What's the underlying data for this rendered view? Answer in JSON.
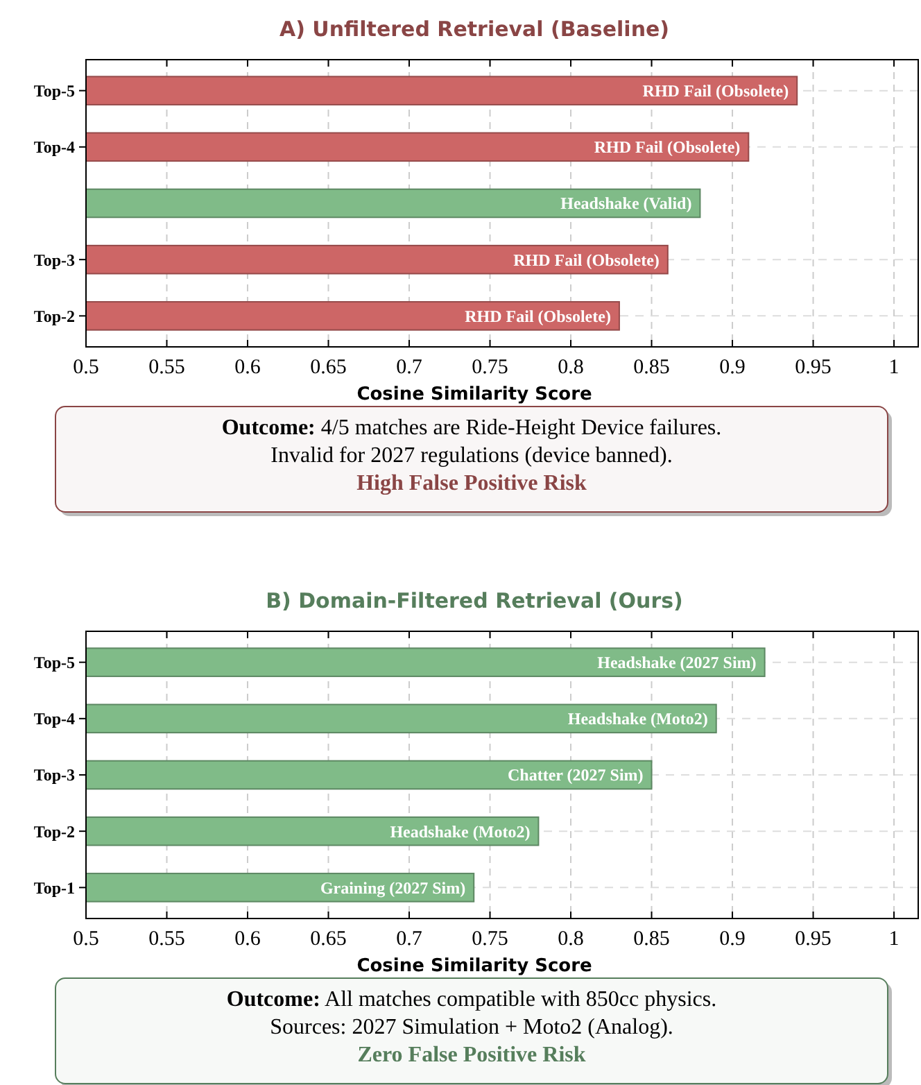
{
  "chart_data": [
    {
      "type": "bar",
      "orientation": "horizontal",
      "title": "A) Unfiltered Retrieval (Baseline)",
      "xlabel": "Cosine Similarity Score",
      "categories": [
        "Top-5",
        "Top-4",
        null,
        "Top-3",
        "Top-2"
      ],
      "values": [
        0.94,
        0.91,
        0.88,
        0.86,
        0.83
      ],
      "colors": [
        "#cd6666",
        "#cd6666",
        "#80bb88",
        "#cd6666",
        "#cd6666"
      ],
      "xlim": [
        0.5,
        1.015
      ],
      "xticks": [
        0.5,
        0.55,
        0.6,
        0.65,
        0.7,
        0.75,
        0.8,
        0.85,
        0.9,
        0.95,
        1
      ],
      "grid": true,
      "annotations": [
        {
          "text": "RHD Fail (Obsolete)",
          "x": 0.94,
          "y": "Top-5"
        },
        {
          "text": "RHD Fail (Obsolete)",
          "x": 0.91,
          "y": "Top-4"
        },
        {
          "text": "Headshake (Valid)",
          "x": 0.88
        },
        {
          "text": "RHD Fail (Obsolete)",
          "x": 0.86,
          "y": "Top-3"
        },
        {
          "text": "RHD Fail (Obsolete)",
          "x": 0.83,
          "y": "Top-2"
        },
        "Outcome: 4/5 matches are Ride-Height Device failures.",
        "Invalid for 2027 regulations (device banned).",
        "High False Positive Risk"
      ]
    },
    {
      "type": "bar",
      "orientation": "horizontal",
      "title": "B) Domain-Filtered Retrieval (Ours)",
      "xlabel": "Cosine Similarity Score",
      "categories": [
        "Top-5",
        "Top-4",
        "Top-3",
        "Top-2",
        "Top-1"
      ],
      "values": [
        0.92,
        0.89,
        0.85,
        0.78,
        0.74
      ],
      "colors": [
        "#80bb88",
        "#80bb88",
        "#80bb88",
        "#80bb88",
        "#80bb88"
      ],
      "xlim": [
        0.5,
        1.015
      ],
      "xticks": [
        0.5,
        0.55,
        0.6,
        0.65,
        0.7,
        0.75,
        0.8,
        0.85,
        0.9,
        0.95,
        1
      ],
      "grid": true,
      "annotations": [
        {
          "text": "Headshake (2027 Sim)",
          "x": 0.92,
          "y": "Top-5"
        },
        {
          "text": "Headshake (Moto2)",
          "x": 0.89,
          "y": "Top-4"
        },
        {
          "text": "Chatter (2027 Sim)",
          "x": 0.85,
          "y": "Top-3"
        },
        {
          "text": "Headshake (Moto2)",
          "x": 0.78,
          "y": "Top-2"
        },
        {
          "text": "Graining (2027 Sim)",
          "x": 0.74,
          "y": "Top-1"
        },
        "Outcome: All matches compatible with 850cc physics.",
        "Sources: 2027 Simulation + Moto2 (Analog).",
        "Zero False Positive Risk"
      ]
    }
  ]
}
